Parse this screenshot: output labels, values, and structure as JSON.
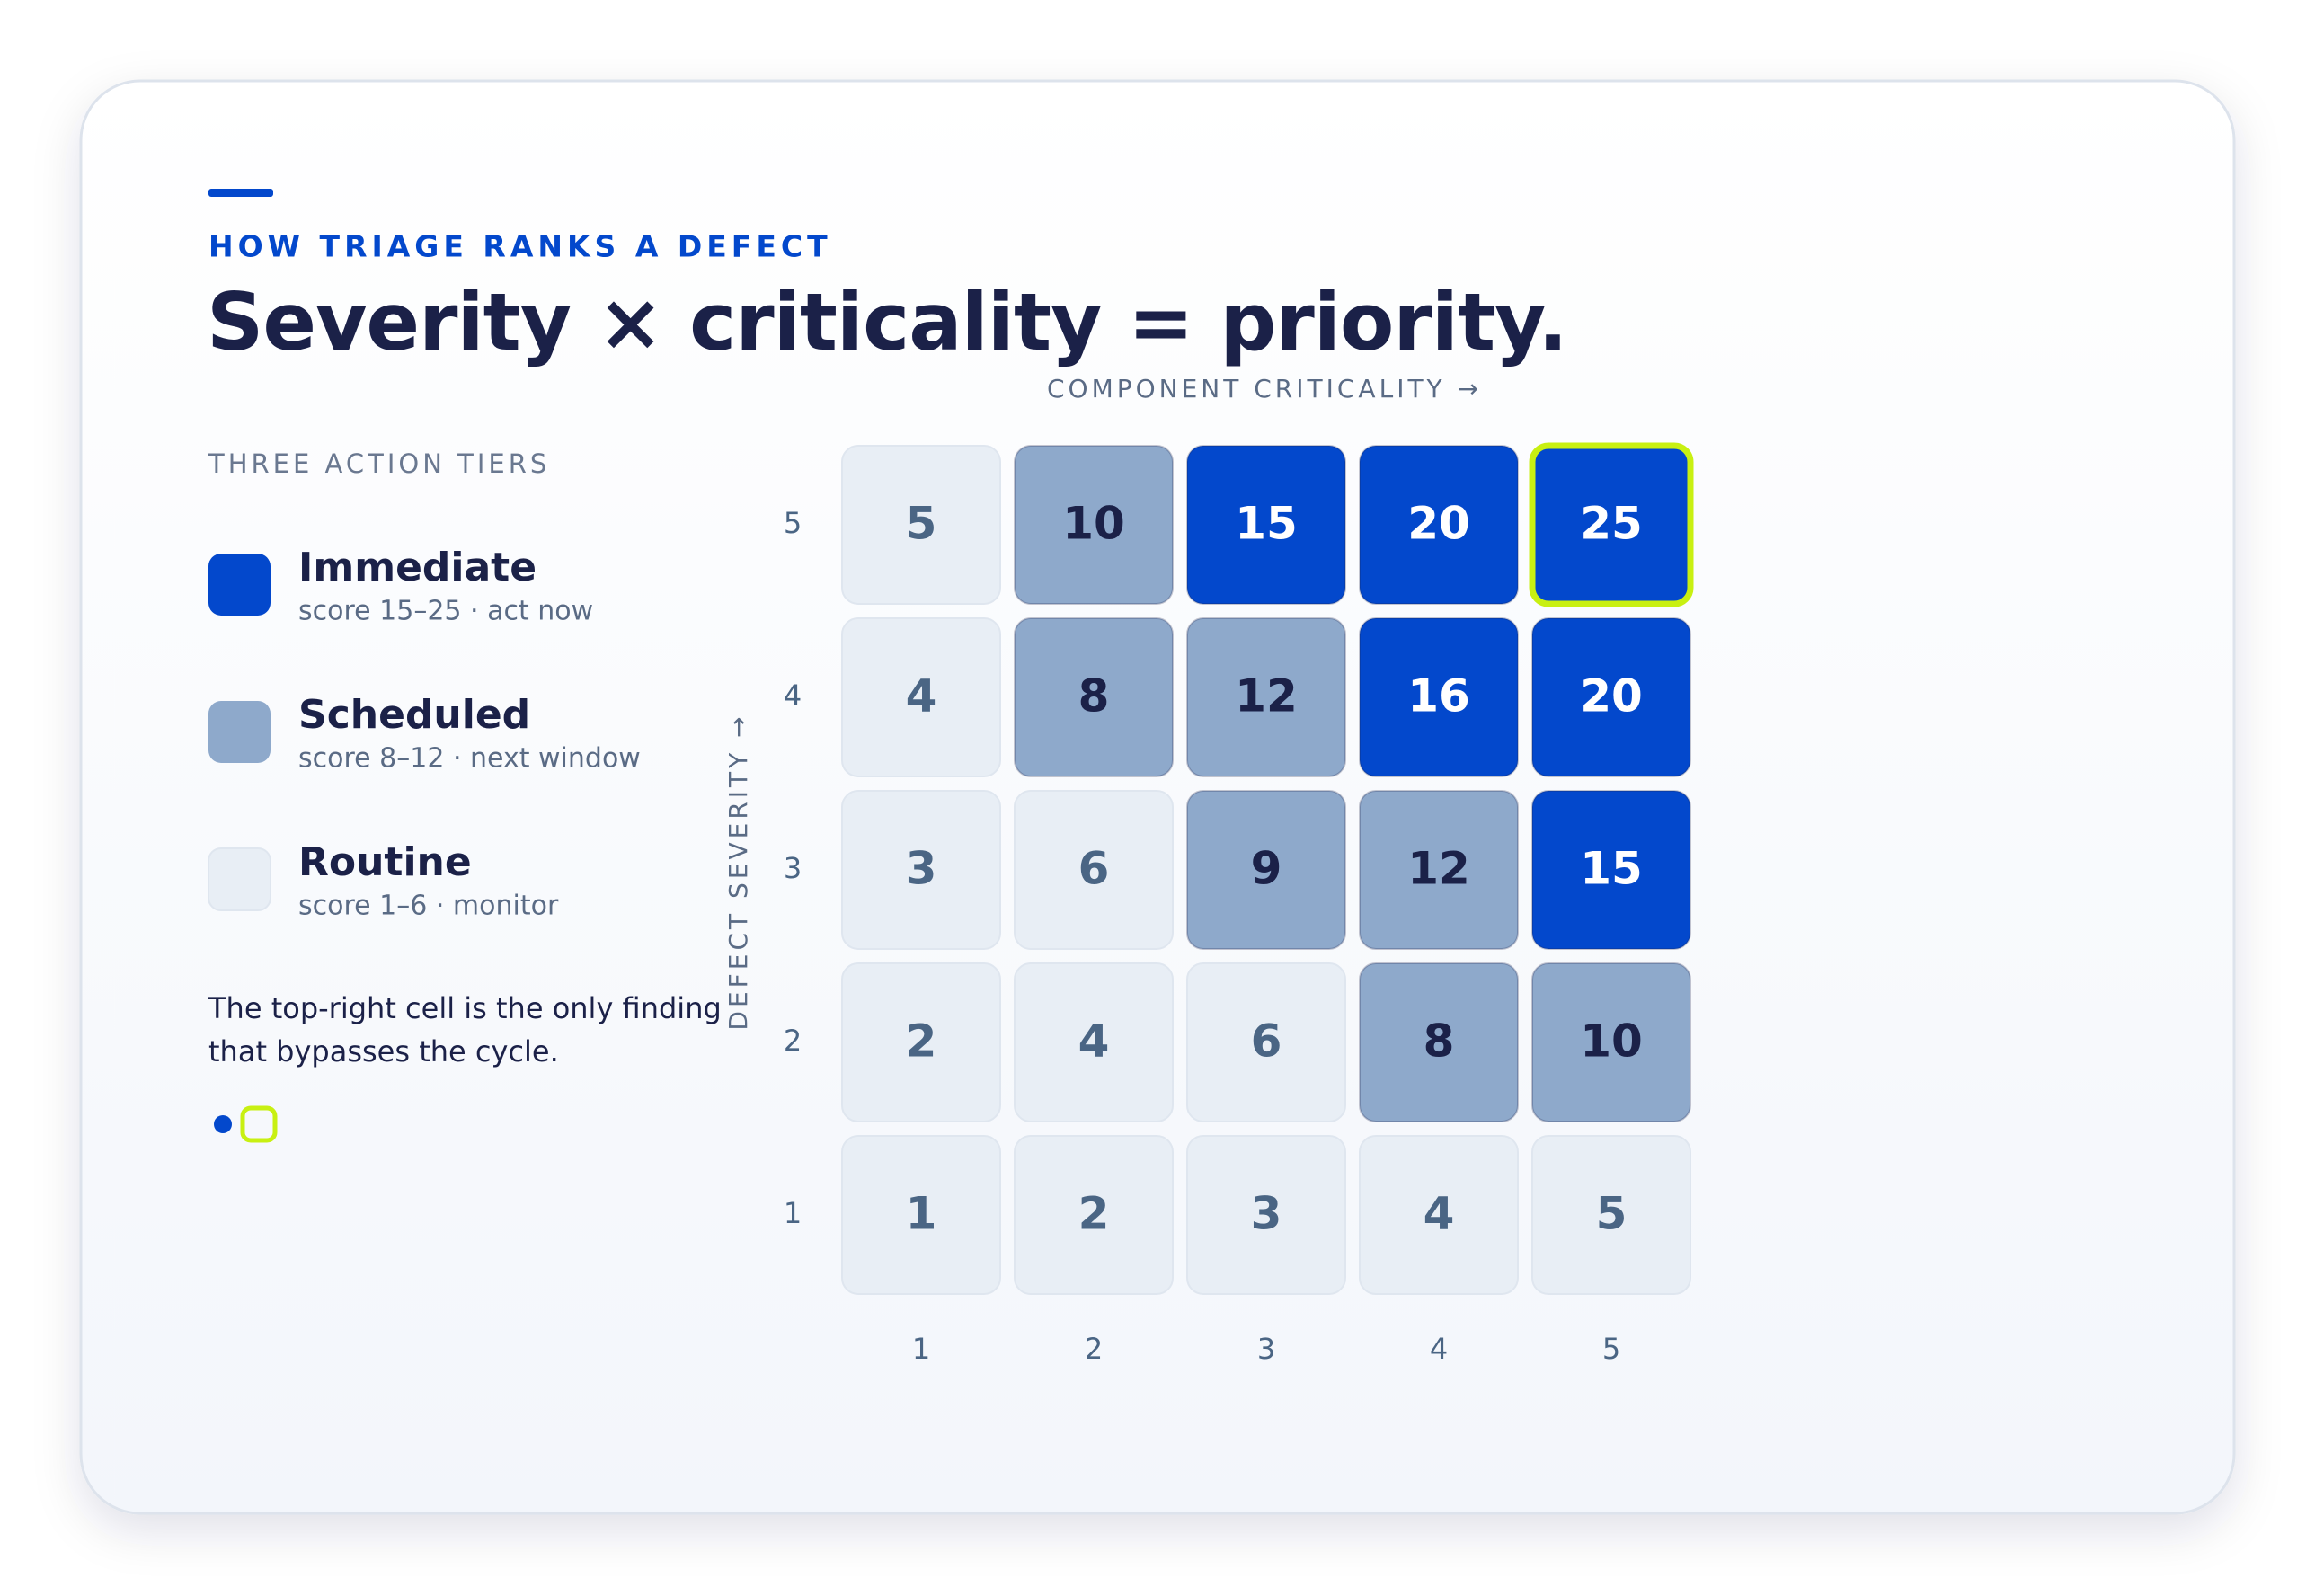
{
  "eyebrow": "HOW TRIAGE RANKS A DEFECT",
  "legend_title": "THREE ACTION TIERS",
  "tiers": [
    {
      "name": "Immediate",
      "detail": "score 15–25 · act now",
      "min": 15,
      "max": 25,
      "color": "#0348cc",
      "text_color": "#ffffff"
    },
    {
      "name": "Scheduled",
      "detail": "score 8–12 · next window",
      "min": 8,
      "max": 12,
      "color": "#8ea9cb",
      "text_color": "#1b2148"
    },
    {
      "name": "Routine",
      "detail": "score 1–6 · monitor",
      "min": 1,
      "max": 6,
      "color": "#e8eef5",
      "text_color": "#4a6584"
    }
  ],
  "note": [
    "The top-right cell is the only finding",
    "that bypasses the cycle."
  ],
  "chart_data": {
    "type": "heatmap",
    "title": "Severity × criticality = priority.",
    "x_label": "COMPONENT CRITICALITY →",
    "y_label": "DEFECT SEVERITY →",
    "x_categories": [
      1,
      2,
      3,
      4,
      5
    ],
    "y_categories": [
      5,
      4,
      3,
      2,
      1
    ],
    "values": [
      [
        5,
        10,
        15,
        20,
        25
      ],
      [
        4,
        8,
        12,
        16,
        20
      ],
      [
        3,
        6,
        9,
        12,
        15
      ],
      [
        2,
        4,
        6,
        8,
        10
      ],
      [
        1,
        2,
        3,
        4,
        5
      ]
    ],
    "highlight_color": "#c8f012"
  }
}
